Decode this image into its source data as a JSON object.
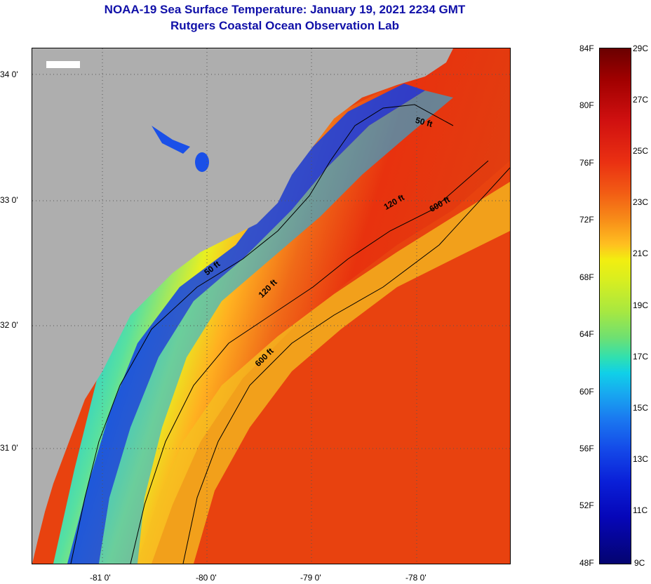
{
  "header": {
    "title_line1": "NOAA-19 Sea Surface Temperature:  January 19, 2021 2234 GMT",
    "title_line2": "Rutgers Coastal Ocean Observation Lab"
  },
  "axes": {
    "latitude_labels": [
      "34 0'",
      "33 0'",
      "32 0'",
      "31 0'"
    ],
    "longitude_labels": [
      "-81 0'",
      "-80 0'",
      "-79 0'",
      "-78 0'"
    ]
  },
  "contours": {
    "label_50": "50 ft",
    "label_120": "120 ft",
    "label_600": "600 ft"
  },
  "colorbar": {
    "fahrenheit_labels": [
      "84F",
      "80F",
      "76F",
      "72F",
      "68F",
      "64F",
      "60F",
      "56F",
      "52F",
      "48F"
    ],
    "celsius_labels": [
      "29C",
      "27C",
      "25C",
      "23C",
      "21C",
      "19C",
      "17C",
      "15C",
      "13C",
      "11C",
      "9C"
    ]
  },
  "colors": {
    "land": "#aeaeae",
    "title": "#1010a8",
    "warm": "#e8320e",
    "cold": "#0a28d8"
  }
}
